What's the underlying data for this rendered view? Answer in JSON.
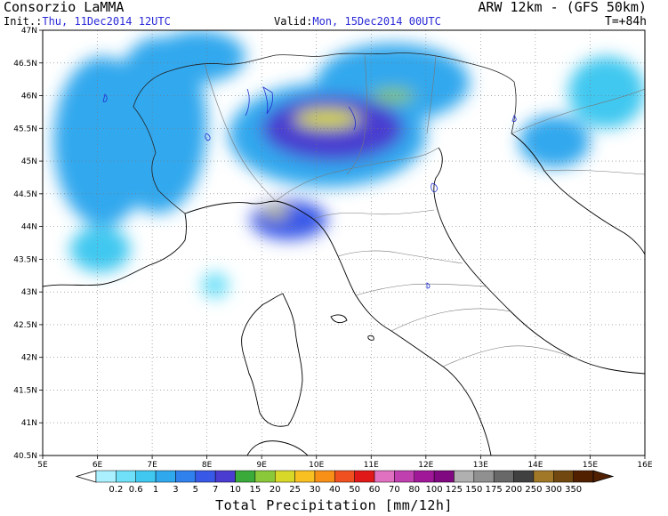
{
  "header": {
    "producer": "Consorzio LaMMA",
    "model": "ARW 12km - (GFS 50km)",
    "init_label": "Init.:",
    "init_value": "Thu, 11Dec2014 12UTC",
    "valid_label": "Valid:",
    "valid_value": "Mon, 15Dec2014 00UTC",
    "step": "T=+84h"
  },
  "map": {
    "lon_ticks": [
      "5E",
      "6E",
      "7E",
      "8E",
      "9E",
      "10E",
      "11E",
      "12E",
      "13E",
      "14E",
      "15E",
      "16E"
    ],
    "lat_ticks": [
      "47N",
      "46.5N",
      "46N",
      "45.5N",
      "45N",
      "44.5N",
      "44N",
      "43.5N",
      "43N",
      "42.5N",
      "42N",
      "41.5N",
      "41N",
      "40.5N"
    ],
    "lon_range": [
      5,
      16
    ],
    "lat_range": [
      40.5,
      47
    ],
    "grid": "dotted"
  },
  "colorbar": {
    "title": "Total Precipitation [mm/12h]",
    "labels": [
      "0.2",
      "0.6",
      "1",
      "3",
      "5",
      "7",
      "10",
      "15",
      "20",
      "25",
      "30",
      "40",
      "50",
      "60",
      "70",
      "80",
      "100",
      "125",
      "150",
      "175",
      "200",
      "250",
      "300",
      "350"
    ],
    "colors": [
      "#aaf0ff",
      "#70e0f8",
      "#40c8f0",
      "#30a8ee",
      "#3080ee",
      "#3858e8",
      "#4a3cd0",
      "#3aaa3a",
      "#8ac83a",
      "#d8d828",
      "#f8c020",
      "#f89018",
      "#f05020",
      "#e01818",
      "#e070c0",
      "#c040b0",
      "#a01898",
      "#800880",
      "#b0b0b0",
      "#909090",
      "#686868",
      "#404040",
      "#a07828",
      "#704810",
      "#502000"
    ]
  },
  "precip_areas": [
    {
      "lon": [
        6.2,
        8.0
      ],
      "lat": [
        44.2,
        46.9
      ],
      "level": 3
    },
    {
      "lon": [
        5.2,
        7.0
      ],
      "lat": [
        44.0,
        46.6
      ],
      "level": 3
    },
    {
      "lon": [
        7.0,
        8.7
      ],
      "lat": [
        46.2,
        47.0
      ],
      "level": 3
    },
    {
      "lon": [
        8.4,
        12.0
      ],
      "lat": [
        44.6,
        46.2
      ],
      "level": 3
    },
    {
      "lon": [
        10.0,
        12.8
      ],
      "lat": [
        45.6,
        46.8
      ],
      "level": 3
    },
    {
      "lon": [
        8.8,
        10.2
      ],
      "lat": [
        43.8,
        44.4
      ],
      "level": 5
    },
    {
      "lon": [
        9.0,
        11.6
      ],
      "lat": [
        45.0,
        46.0
      ],
      "level": 6
    },
    {
      "lon": [
        9.6,
        10.8
      ],
      "lat": [
        45.5,
        45.8
      ],
      "level": 9
    },
    {
      "lon": [
        11.0,
        11.8
      ],
      "lat": [
        45.9,
        46.1
      ],
      "level": 8
    },
    {
      "lon": [
        9.0,
        9.5
      ],
      "lat": [
        44.15,
        44.3
      ],
      "level": 9
    },
    {
      "lon": [
        13.7,
        15.0
      ],
      "lat": [
        44.9,
        45.7
      ],
      "level": 3
    },
    {
      "lon": [
        14.6,
        16.0
      ],
      "lat": [
        45.5,
        46.6
      ],
      "level": 2
    },
    {
      "lon": [
        7.9,
        8.4
      ],
      "lat": [
        42.9,
        43.3
      ],
      "level": 1
    },
    {
      "lon": [
        5.5,
        6.6
      ],
      "lat": [
        43.3,
        44.0
      ],
      "level": 2
    }
  ]
}
